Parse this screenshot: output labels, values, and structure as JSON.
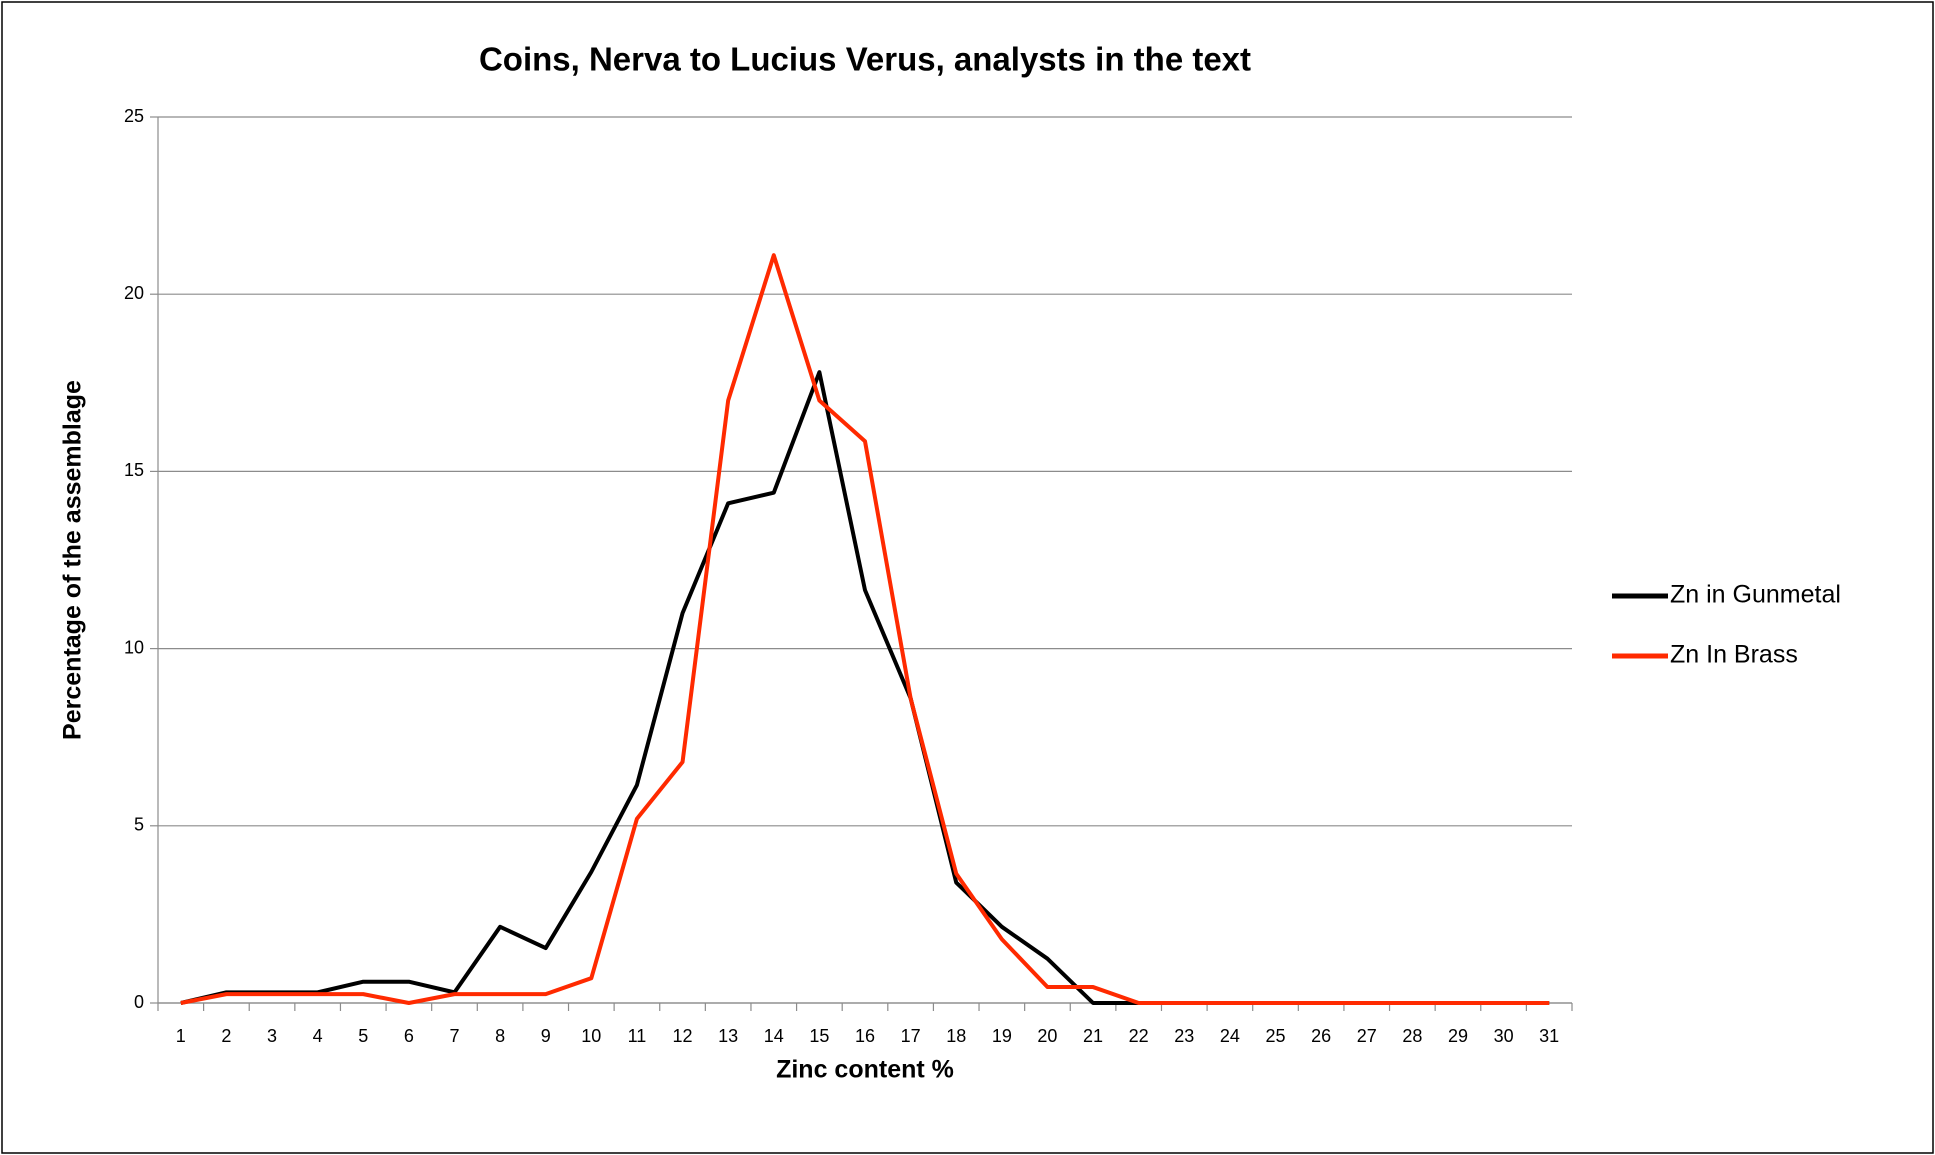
{
  "chart_data": {
    "type": "line",
    "title": "Coins, Nerva to Lucius Verus, analysts in the text",
    "x_label": "Zinc content %",
    "y_label": "Percentage of the assemblage",
    "categories": [
      1,
      2,
      3,
      4,
      5,
      6,
      7,
      8,
      9,
      10,
      11,
      12,
      13,
      14,
      15,
      16,
      17,
      18,
      19,
      20,
      21,
      22,
      23,
      24,
      25,
      26,
      27,
      28,
      29,
      30,
      31
    ],
    "series": [
      {
        "name": "Zn in Gunmetal",
        "color": "#000000",
        "values": [
          0,
          0.3,
          0.3,
          0.3,
          0.6,
          0.6,
          0.3,
          2.15,
          1.55,
          3.7,
          6.15,
          11.0,
          14.1,
          14.4,
          17.8,
          11.65,
          8.6,
          3.4,
          2.15,
          1.25,
          0,
          0,
          0,
          0,
          0,
          0,
          0,
          0,
          0,
          0,
          0
        ]
      },
      {
        "name": "Zn In Brass",
        "color": "#ff2a00",
        "values": [
          0,
          0.25,
          0.25,
          0.25,
          0.25,
          0,
          0.25,
          0.25,
          0.25,
          0.7,
          5.2,
          6.8,
          17.0,
          21.1,
          17.0,
          15.85,
          8.6,
          3.65,
          1.8,
          0.45,
          0.45,
          0,
          0,
          0,
          0,
          0,
          0,
          0,
          0,
          0,
          0
        ]
      }
    ],
    "ylim": [
      0,
      25
    ],
    "yticks": [
      0,
      5,
      10,
      15,
      20,
      25
    ],
    "grid": true,
    "legend": "right"
  }
}
